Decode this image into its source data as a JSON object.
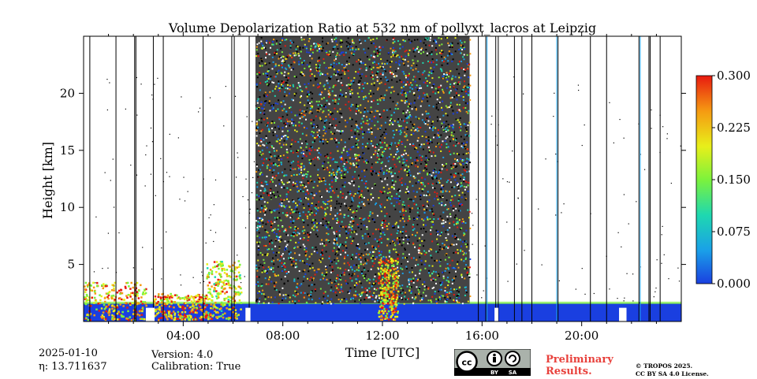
{
  "chart_data": {
    "type": "heatmap",
    "title": "Volume Depolarization Ratio at 532 nm of pollyxt_lacros at Leipzig",
    "xlabel": "Time [UTC]",
    "ylabel": "Height [km]",
    "x_ticks": [
      {
        "value": 4,
        "label": "04:00"
      },
      {
        "value": 8,
        "label": "08:00"
      },
      {
        "value": 12,
        "label": "12:00"
      },
      {
        "value": 16,
        "label": "16:00"
      },
      {
        "value": 20,
        "label": "20:00"
      }
    ],
    "y_ticks": [
      {
        "value": 5,
        "label": "5"
      },
      {
        "value": 10,
        "label": "10"
      },
      {
        "value": 15,
        "label": "15"
      },
      {
        "value": 20,
        "label": "20"
      }
    ],
    "xlim": [
      0,
      24
    ],
    "ylim": [
      0,
      25
    ],
    "colorbar": {
      "vmin": 0.0,
      "vmax": 0.3,
      "ticks": [
        {
          "value": 0.0,
          "label": "0.000"
        },
        {
          "value": 0.075,
          "label": "0.075"
        },
        {
          "value": 0.15,
          "label": "0.150"
        },
        {
          "value": 0.225,
          "label": "0.225"
        },
        {
          "value": 0.3,
          "label": "0.300"
        }
      ],
      "colors": [
        "#1a3fe0",
        "#1aa0e8",
        "#1ed8b0",
        "#7cf23c",
        "#e8ef1a",
        "#f59a12",
        "#e81a10"
      ]
    },
    "features": {
      "noise_region_hours": [
        6.9,
        15.5
      ],
      "boundary_layer_top_km": 1.6,
      "aerosol_patches": [
        {
          "start_h": 0.0,
          "end_h": 2.5,
          "top_km": 3.5,
          "value": 0.22
        },
        {
          "start_h": 2.8,
          "end_h": 4.9,
          "top_km": 2.5,
          "value": 0.24
        },
        {
          "start_h": 4.9,
          "end_h": 6.3,
          "top_km": 5.4,
          "value": 0.2
        },
        {
          "start_h": 11.8,
          "end_h": 12.6,
          "top_km": 5.6,
          "value": 0.23
        }
      ],
      "data_gaps_hours": [
        [
          2.5,
          2.85
        ],
        [
          6.5,
          6.7
        ],
        [
          16.5,
          16.65
        ],
        [
          21.5,
          21.8
        ]
      ],
      "rain_lines_hours": [
        0.25,
        1.3,
        2.05,
        2.1,
        2.8,
        3.2,
        4.8,
        5.95,
        6.05,
        6.65,
        15.85,
        16.15,
        16.55,
        16.65,
        17.3,
        17.6,
        18.0,
        19.05,
        20.35,
        21.0,
        22.3,
        22.7,
        22.75,
        23.15
      ],
      "blue_lines_hours": [
        16.2,
        19.0,
        22.35
      ]
    }
  },
  "info": {
    "date": "2025-01-10",
    "eta_label": "η: 13.711637",
    "version": "Version: 4.0",
    "calibration": "Calibration: True",
    "preliminary_line1": "Preliminary",
    "preliminary_line2": "Results.",
    "copyright_line1": "© TROPOS 2025.",
    "copyright_line2": "CC BY SA 4.0 License.",
    "license_badge": {
      "by": "BY",
      "sa": "SA"
    }
  }
}
